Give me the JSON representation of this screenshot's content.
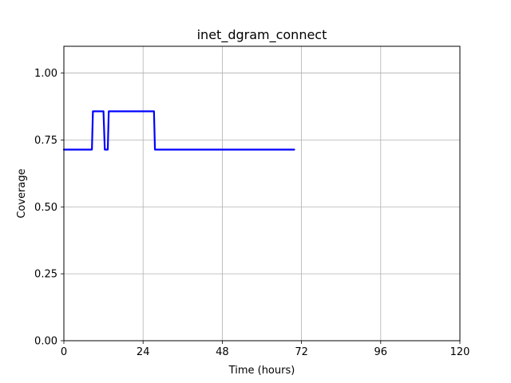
{
  "chart_data": {
    "type": "line",
    "title": "inet_dgram_connect",
    "xlabel": "Time (hours)",
    "ylabel": "Coverage",
    "xlim": [
      0,
      120
    ],
    "ylim": [
      0,
      1.1
    ],
    "xticks": [
      0,
      24,
      48,
      72,
      96,
      120
    ],
    "xtick_labels": [
      "0",
      "24",
      "48",
      "72",
      "96",
      "120"
    ],
    "yticks": [
      0,
      0.25,
      0.5,
      0.75,
      1.0
    ],
    "ytick_labels": [
      "0.00",
      "0.25",
      "0.50",
      "0.75",
      "1.00"
    ],
    "grid": true,
    "series": [
      {
        "color": "#0000ff",
        "x": [
          0,
          8.5,
          8.8,
          12.0,
          12.4,
          13.3,
          13.6,
          27.3,
          27.6,
          69.8
        ],
        "y": [
          0.714,
          0.714,
          0.857,
          0.857,
          0.714,
          0.714,
          0.857,
          0.857,
          0.714,
          0.714
        ]
      }
    ]
  }
}
